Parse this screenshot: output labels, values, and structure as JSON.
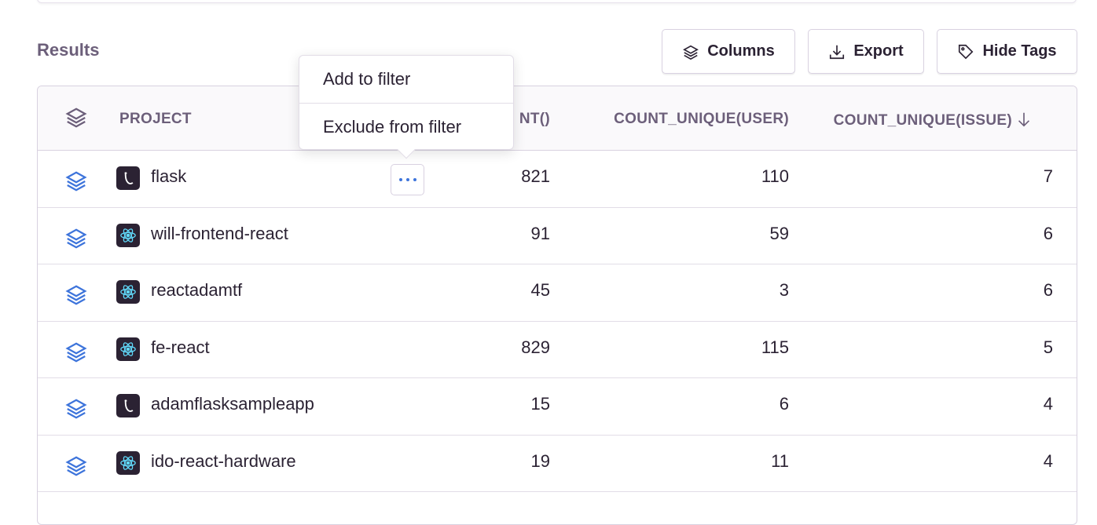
{
  "results_title": "Results",
  "toolbar": {
    "columns": "Columns",
    "export": "Export",
    "hide_tags": "Hide Tags"
  },
  "columns": [
    "PROJECT",
    "COUNT()",
    "COUNT_UNIQUE(USER)",
    "COUNT_UNIQUE(ISSUE)"
  ],
  "header_visible": {
    "count": "NT()",
    "sort_icon": "arrow-down-icon"
  },
  "rows": [
    {
      "project": "flask",
      "platform": "flask",
      "count": "821",
      "users": "110",
      "issues": "7"
    },
    {
      "project": "will-frontend-react",
      "platform": "react",
      "count": "91",
      "users": "59",
      "issues": "6"
    },
    {
      "project": "reactadamtf",
      "platform": "react",
      "count": "45",
      "users": "3",
      "issues": "6"
    },
    {
      "project": "fe-react",
      "platform": "react",
      "count": "829",
      "users": "115",
      "issues": "5"
    },
    {
      "project": "adamflasksampleapp",
      "platform": "flask",
      "count": "15",
      "users": "6",
      "issues": "4"
    },
    {
      "project": "ido-react-hardware",
      "platform": "react",
      "count": "19",
      "users": "11",
      "issues": "4"
    }
  ],
  "popover": {
    "add": "Add to filter",
    "exclude": "Exclude from filter"
  },
  "colors": {
    "accent": "#3d74db",
    "header_text": "#6c5f7a",
    "react": "#61dafb"
  }
}
